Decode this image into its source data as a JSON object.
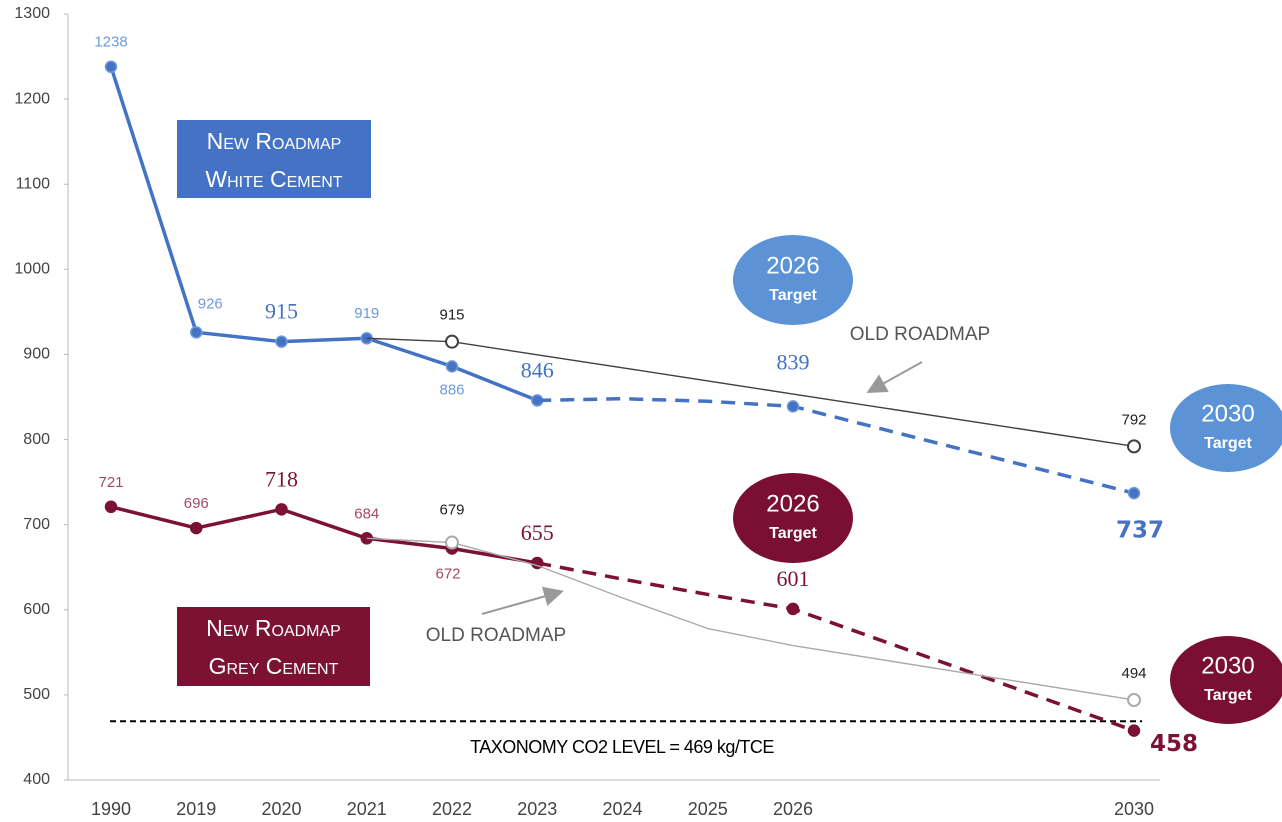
{
  "chart_data": {
    "type": "line",
    "categories": [
      "1990",
      "2019",
      "2020",
      "2021",
      "2022",
      "2023",
      "2024",
      "2025",
      "2026",
      "2030"
    ],
    "ylim": [
      400,
      1300
    ],
    "yticks": [
      400,
      500,
      600,
      700,
      800,
      900,
      1000,
      1100,
      1200,
      1300
    ],
    "series": [
      {
        "name": "New Roadmap White Cement",
        "color": "#4472c4",
        "dash": false,
        "marker": "filled",
        "values": [
          1238,
          926,
          915,
          919,
          886,
          846,
          null,
          null,
          null,
          null
        ],
        "value_labels": [
          "1238",
          "926",
          "915",
          "919",
          "886",
          "846",
          null,
          null,
          null,
          null
        ]
      },
      {
        "color": "#4472c4",
        "dash": true,
        "marker": "filled",
        "values": [
          null,
          null,
          null,
          null,
          null,
          846,
          848,
          845,
          839,
          737
        ],
        "value_labels": [
          null,
          null,
          null,
          null,
          null,
          null,
          null,
          null,
          "839",
          "737"
        ]
      },
      {
        "color": "#404040",
        "dash": false,
        "marker": "hollow",
        "values": [
          null,
          null,
          null,
          919,
          915,
          899.6,
          884.3,
          868.9,
          853.5,
          792
        ],
        "value_labels": [
          null,
          null,
          null,
          null,
          "915",
          null,
          null,
          null,
          null,
          "792"
        ]
      },
      {
        "name": "New Roadmap Grey Cement",
        "color": "#7b1133",
        "dash": false,
        "marker": "filled",
        "values": [
          721,
          696,
          718,
          684,
          672,
          655,
          null,
          null,
          null,
          null
        ],
        "value_labels": [
          "721",
          "696",
          "718",
          "684",
          "672",
          "655",
          null,
          null,
          null,
          null
        ]
      },
      {
        "color": "#7b1133",
        "dash": true,
        "marker": "filled",
        "values": [
          null,
          null,
          null,
          null,
          null,
          655,
          636,
          618,
          601,
          458
        ],
        "value_labels": [
          null,
          null,
          null,
          null,
          null,
          null,
          null,
          null,
          "601",
          "458"
        ]
      },
      {
        "color": "#aaaaaa",
        "dash": false,
        "marker": "hollow",
        "values": [
          null,
          null,
          null,
          684,
          679,
          652,
          614,
          578,
          558,
          494
        ],
        "value_labels": [
          null,
          null,
          null,
          null,
          "679",
          null,
          null,
          null,
          null,
          "494"
        ]
      }
    ],
    "reference_line": {
      "value": 469,
      "label": "TAXONOMY CO2 LEVEL = 469 kg/TCE"
    },
    "annotations": [
      "OLD ROADMAP",
      "OLD ROADMAP"
    ],
    "targets": [
      {
        "year": "2026",
        "label": "Target",
        "color": "#5b93d6"
      },
      {
        "year": "2030",
        "label": "Target",
        "color": "#5b93d6"
      },
      {
        "year": "2026",
        "label": "Target",
        "color": "#7b0f33"
      },
      {
        "year": "2030",
        "label": "Target",
        "color": "#7b0f33"
      }
    ]
  }
}
